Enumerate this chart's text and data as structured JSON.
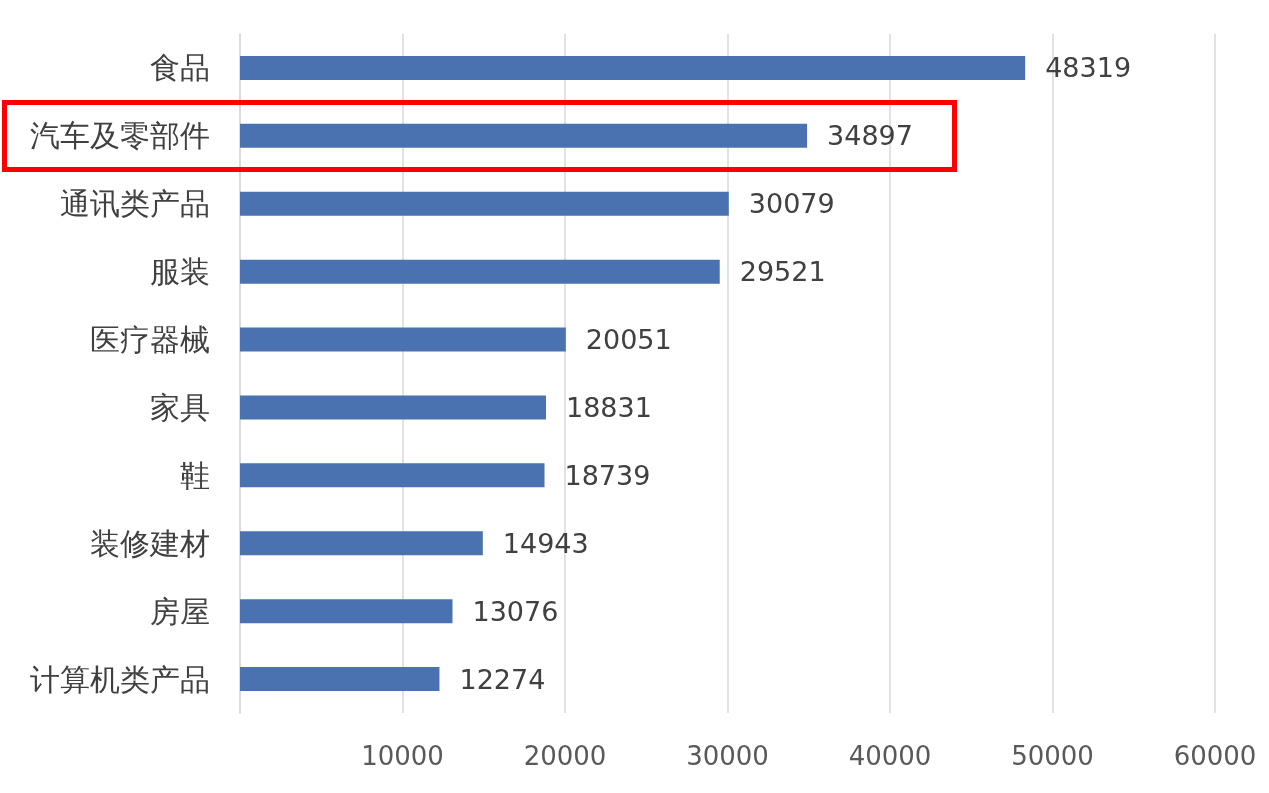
{
  "chart_data": {
    "type": "bar",
    "orientation": "horizontal",
    "categories": [
      "食品",
      "汽车及零部件",
      "通讯类产品",
      "服装",
      "医疗器械",
      "家具",
      "鞋",
      "装修建材",
      "房屋",
      "计算机类产品"
    ],
    "values": [
      48319,
      34897,
      30079,
      29521,
      20051,
      18831,
      18739,
      14943,
      13076,
      12274
    ],
    "color": "#4a72b0",
    "xlim": [
      0,
      60000
    ],
    "xticks": [
      {
        "value": 0,
        "label": null
      },
      10000,
      20000,
      30000,
      40000,
      50000,
      60000
    ],
    "grid": "x",
    "data_labels": true
  }
}
